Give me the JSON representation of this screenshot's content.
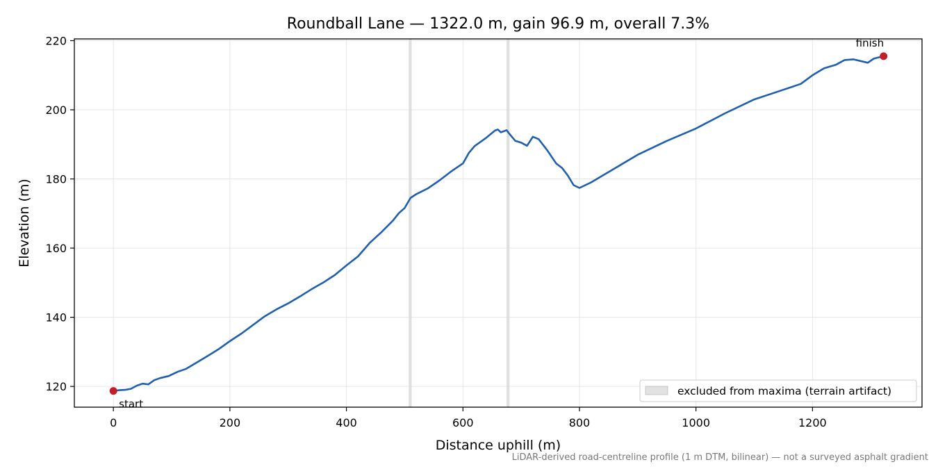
{
  "chart_data": {
    "type": "line",
    "title": "Roundball Lane — 1322.0 m, gain 96.9 m, overall 7.3%",
    "xlabel": "Distance uphill (m)",
    "ylabel": "Elevation (m)",
    "xlim": [
      -67,
      1388
    ],
    "ylim": [
      114,
      220.5
    ],
    "xticks": [
      0,
      200,
      400,
      600,
      800,
      1000,
      1200
    ],
    "yticks": [
      120,
      140,
      160,
      180,
      200,
      220
    ],
    "grid": true,
    "legend_position": "lower-right",
    "series": [
      {
        "color": "#1f5fad",
        "points": [
          [
            0,
            118.7
          ],
          [
            10,
            118.9
          ],
          [
            20,
            119.0
          ],
          [
            30,
            119.3
          ],
          [
            40,
            120.2
          ],
          [
            50,
            120.8
          ],
          [
            60,
            120.6
          ],
          [
            70,
            121.8
          ],
          [
            80,
            122.4
          ],
          [
            95,
            123.0
          ],
          [
            110,
            124.2
          ],
          [
            125,
            125.1
          ],
          [
            140,
            126.6
          ],
          [
            160,
            128.6
          ],
          [
            180,
            130.7
          ],
          [
            200,
            133.1
          ],
          [
            220,
            135.3
          ],
          [
            240,
            137.8
          ],
          [
            260,
            140.3
          ],
          [
            280,
            142.3
          ],
          [
            300,
            144.0
          ],
          [
            320,
            146.0
          ],
          [
            340,
            148.1
          ],
          [
            360,
            150.0
          ],
          [
            380,
            152.2
          ],
          [
            400,
            155.0
          ],
          [
            420,
            157.6
          ],
          [
            440,
            161.5
          ],
          [
            460,
            164.6
          ],
          [
            480,
            168.0
          ],
          [
            490,
            170.1
          ],
          [
            500,
            171.6
          ],
          [
            510,
            174.5
          ],
          [
            520,
            175.6
          ],
          [
            540,
            177.3
          ],
          [
            560,
            179.6
          ],
          [
            580,
            182.2
          ],
          [
            600,
            184.5
          ],
          [
            610,
            187.5
          ],
          [
            620,
            189.5
          ],
          [
            640,
            191.9
          ],
          [
            655,
            194.0
          ],
          [
            660,
            194.3
          ],
          [
            665,
            193.5
          ],
          [
            675,
            194.1
          ],
          [
            680,
            193.0
          ],
          [
            690,
            191.0
          ],
          [
            700,
            190.5
          ],
          [
            710,
            189.6
          ],
          [
            720,
            192.2
          ],
          [
            730,
            191.5
          ],
          [
            745,
            188.2
          ],
          [
            760,
            184.5
          ],
          [
            770,
            183.2
          ],
          [
            780,
            181.0
          ],
          [
            790,
            178.2
          ],
          [
            800,
            177.4
          ],
          [
            820,
            179.0
          ],
          [
            860,
            183.0
          ],
          [
            900,
            187.0
          ],
          [
            950,
            191.0
          ],
          [
            1000,
            194.6
          ],
          [
            1050,
            199.0
          ],
          [
            1100,
            203.0
          ],
          [
            1150,
            205.8
          ],
          [
            1180,
            207.5
          ],
          [
            1200,
            210.0
          ],
          [
            1220,
            212.0
          ],
          [
            1240,
            213.0
          ],
          [
            1255,
            214.4
          ],
          [
            1270,
            214.6
          ],
          [
            1285,
            214.0
          ],
          [
            1295,
            213.6
          ],
          [
            1305,
            214.8
          ],
          [
            1322,
            215.5
          ]
        ]
      }
    ],
    "markers": [
      {
        "label": "start",
        "x": 0,
        "y": 118.7,
        "color": "#c0202a"
      },
      {
        "label": "finish",
        "x": 1322,
        "y": 215.5,
        "color": "#c0202a"
      }
    ],
    "excluded_bands": [
      [
        507,
        512
      ],
      [
        675,
        680
      ]
    ],
    "legend": [
      {
        "label": "excluded from maxima (terrain artifact)",
        "color": "#e2e2e2"
      }
    ]
  },
  "footnote": "LiDAR-derived road-centreline profile (1 m DTM, bilinear) — not a surveyed asphalt gradient"
}
